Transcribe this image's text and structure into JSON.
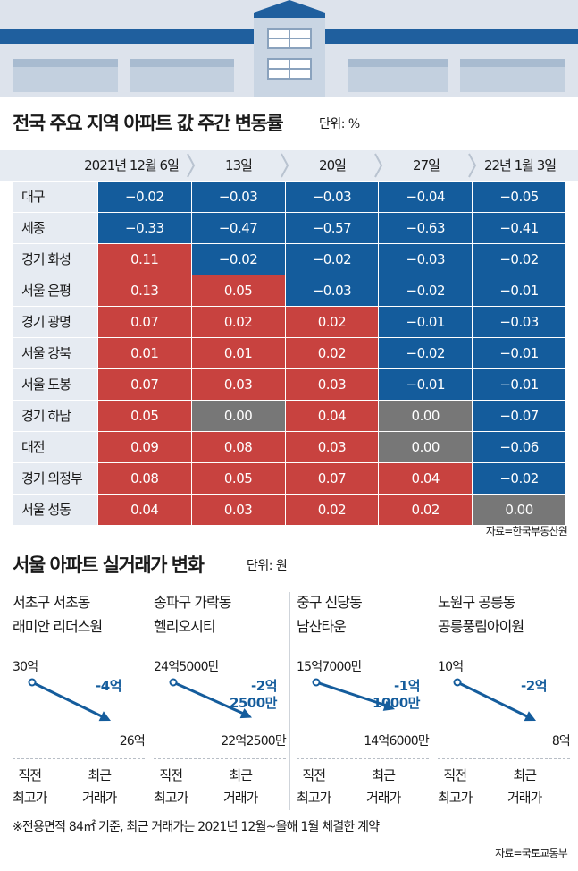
{
  "colors": {
    "increase": "#c8423f",
    "decrease": "#145c9c",
    "unchanged": "#777777",
    "header_bg": "#e6ebf2",
    "accent_text": "#145c9c"
  },
  "section1": {
    "title": "전국 주요 지역 아파트 값 주간 변동률",
    "unit": "단위: %",
    "source": "자료=한국부동산원"
  },
  "section2": {
    "title": "서울 아파트 실거래가 변화",
    "unit": "단위: 원",
    "note": "※전용면적 84㎡ 기준, 최근 거래가는 2021년 12월~올해 1월 체결한 계약",
    "source": "자료=국토교통부"
  },
  "chart_data": [
    {
      "type": "table",
      "title": "전국 주요 지역 아파트 값 주간 변동률",
      "unit": "%",
      "columns": [
        "2021년 12월 6일",
        "13일",
        "20일",
        "27일",
        "22년 1월 3일"
      ],
      "rows": [
        {
          "region": "대구",
          "values": [
            -0.02,
            -0.03,
            -0.03,
            -0.04,
            -0.05
          ]
        },
        {
          "region": "세종",
          "values": [
            -0.33,
            -0.47,
            -0.57,
            -0.63,
            -0.41
          ]
        },
        {
          "region": "경기 화성",
          "values": [
            0.11,
            -0.02,
            -0.02,
            -0.03,
            -0.02
          ]
        },
        {
          "region": "서울 은평",
          "values": [
            0.13,
            0.05,
            -0.03,
            -0.02,
            -0.01
          ]
        },
        {
          "region": "경기 광명",
          "values": [
            0.07,
            0.02,
            0.02,
            -0.01,
            -0.03
          ]
        },
        {
          "region": "서울 강북",
          "values": [
            0.01,
            0.01,
            0.02,
            -0.02,
            -0.01
          ]
        },
        {
          "region": "서울 도봉",
          "values": [
            0.07,
            0.03,
            0.03,
            -0.01,
            -0.01
          ]
        },
        {
          "region": "경기 하남",
          "values": [
            0.05,
            0.0,
            0.04,
            0.0,
            -0.07
          ]
        },
        {
          "region": "대전",
          "values": [
            0.09,
            0.08,
            0.03,
            0.0,
            -0.06
          ]
        },
        {
          "region": "경기 의정부",
          "values": [
            0.08,
            0.05,
            0.07,
            0.04,
            -0.02
          ]
        },
        {
          "region": "서울 성동",
          "values": [
            0.04,
            0.03,
            0.02,
            0.02,
            0.0
          ]
        }
      ]
    },
    {
      "type": "line",
      "title": "서울 아파트 실거래가 변화",
      "unit": "원",
      "x": [
        "직전 최고가",
        "최근 거래가"
      ],
      "x_label_lines": [
        [
          "직전",
          "최고가"
        ],
        [
          "최근",
          "거래가"
        ]
      ],
      "panels": [
        {
          "district": "서초구 서초동",
          "complex": "래미안 리더스원",
          "from_label": "30억",
          "to_label": "26억",
          "change_label": [
            "-4억"
          ],
          "values": [
            3000000000,
            2600000000
          ]
        },
        {
          "district": "송파구 가락동",
          "complex": "헬리오시티",
          "from_label": "24억5000만",
          "to_label": "22억2500만",
          "change_label": [
            "-2억",
            "2500만"
          ],
          "values": [
            2450000000,
            2225000000
          ]
        },
        {
          "district": "중구 신당동",
          "complex": "남산타운",
          "from_label": "15억7000만",
          "to_label": "14억6000만",
          "change_label": [
            "-1억",
            "1000만"
          ],
          "values": [
            1570000000,
            1460000000
          ]
        },
        {
          "district": "노원구 공릉동",
          "complex": "공릉풍림아이원",
          "from_label": "10억",
          "to_label": "8억",
          "change_label": [
            "-2억"
          ],
          "values": [
            1000000000,
            800000000
          ]
        }
      ]
    }
  ]
}
